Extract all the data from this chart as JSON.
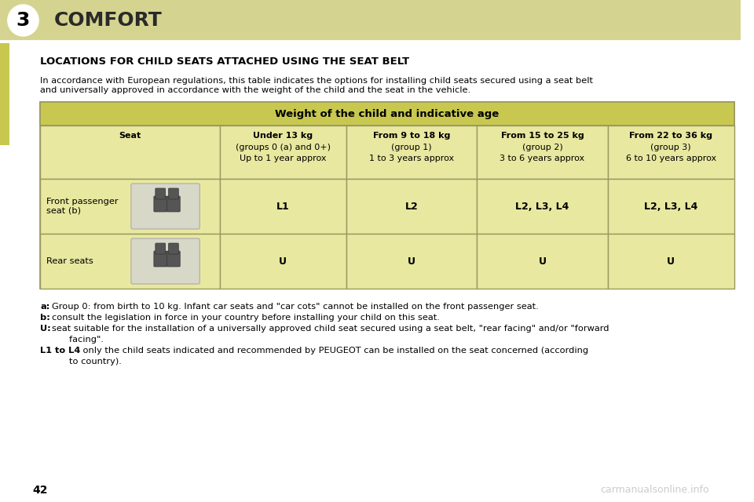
{
  "bg_color": "#f5f5dc",
  "page_bg": "#ffffff",
  "header_bg": "#d4d490",
  "header_text_color": "#000000",
  "chapter_number": "3",
  "chapter_title": "COMFORT",
  "section_title": "LOCATIONS FOR CHILD SEATS ATTACHED USING THE SEAT BELT",
  "intro_text": "In accordance with European regulations, this table indicates the options for installing child seats secured using a seat belt\nand universally approved in accordance with the weight of the child and the seat in the vehicle.",
  "table_header": "Weight of the child and indicative age",
  "table_header_bg": "#c8c850",
  "table_row_bg": "#e8e8a0",
  "table_border": "#999960",
  "col_headers": [
    "Seat",
    "Under 13 kg\n(groups 0 (a) and 0+)\nUp to 1 year approx",
    "From 9 to 18 kg\n(group 1)\n1 to 3 years approx",
    "From 15 to 25 kg\n(group 2)\n3 to 6 years approx",
    "From 22 to 36 kg\n(group 3)\n6 to 10 years approx"
  ],
  "row1_label": "Front passenger\nseat (b)",
  "row1_values": [
    "L1",
    "L2",
    "L2, L3, L4",
    "L2, L3, L4"
  ],
  "row2_label": "Rear seats",
  "row2_values": [
    "U",
    "U",
    "U",
    "U"
  ],
  "footnotes": [
    [
      "a:",
      "Group 0: from birth to 10 kg. Infant car seats and \"car cots\" cannot be installed on the front passenger seat."
    ],
    [
      "b:",
      "consult the legislation in force in your country before installing your child on this seat."
    ],
    [
      "U:",
      "seat suitable for the installation of a universally approved child seat secured using a seat belt, \"rear facing\" and/or \"forward\n        facing\"."
    ],
    [
      "L1 to L4",
      ": only the child seats indicated and recommended by PEUGEOT can be installed on the seat concerned (according\n        to country)."
    ]
  ],
  "page_number": "42",
  "watermark": "carmanualsonline.info",
  "left_tab_color": "#c8c850"
}
